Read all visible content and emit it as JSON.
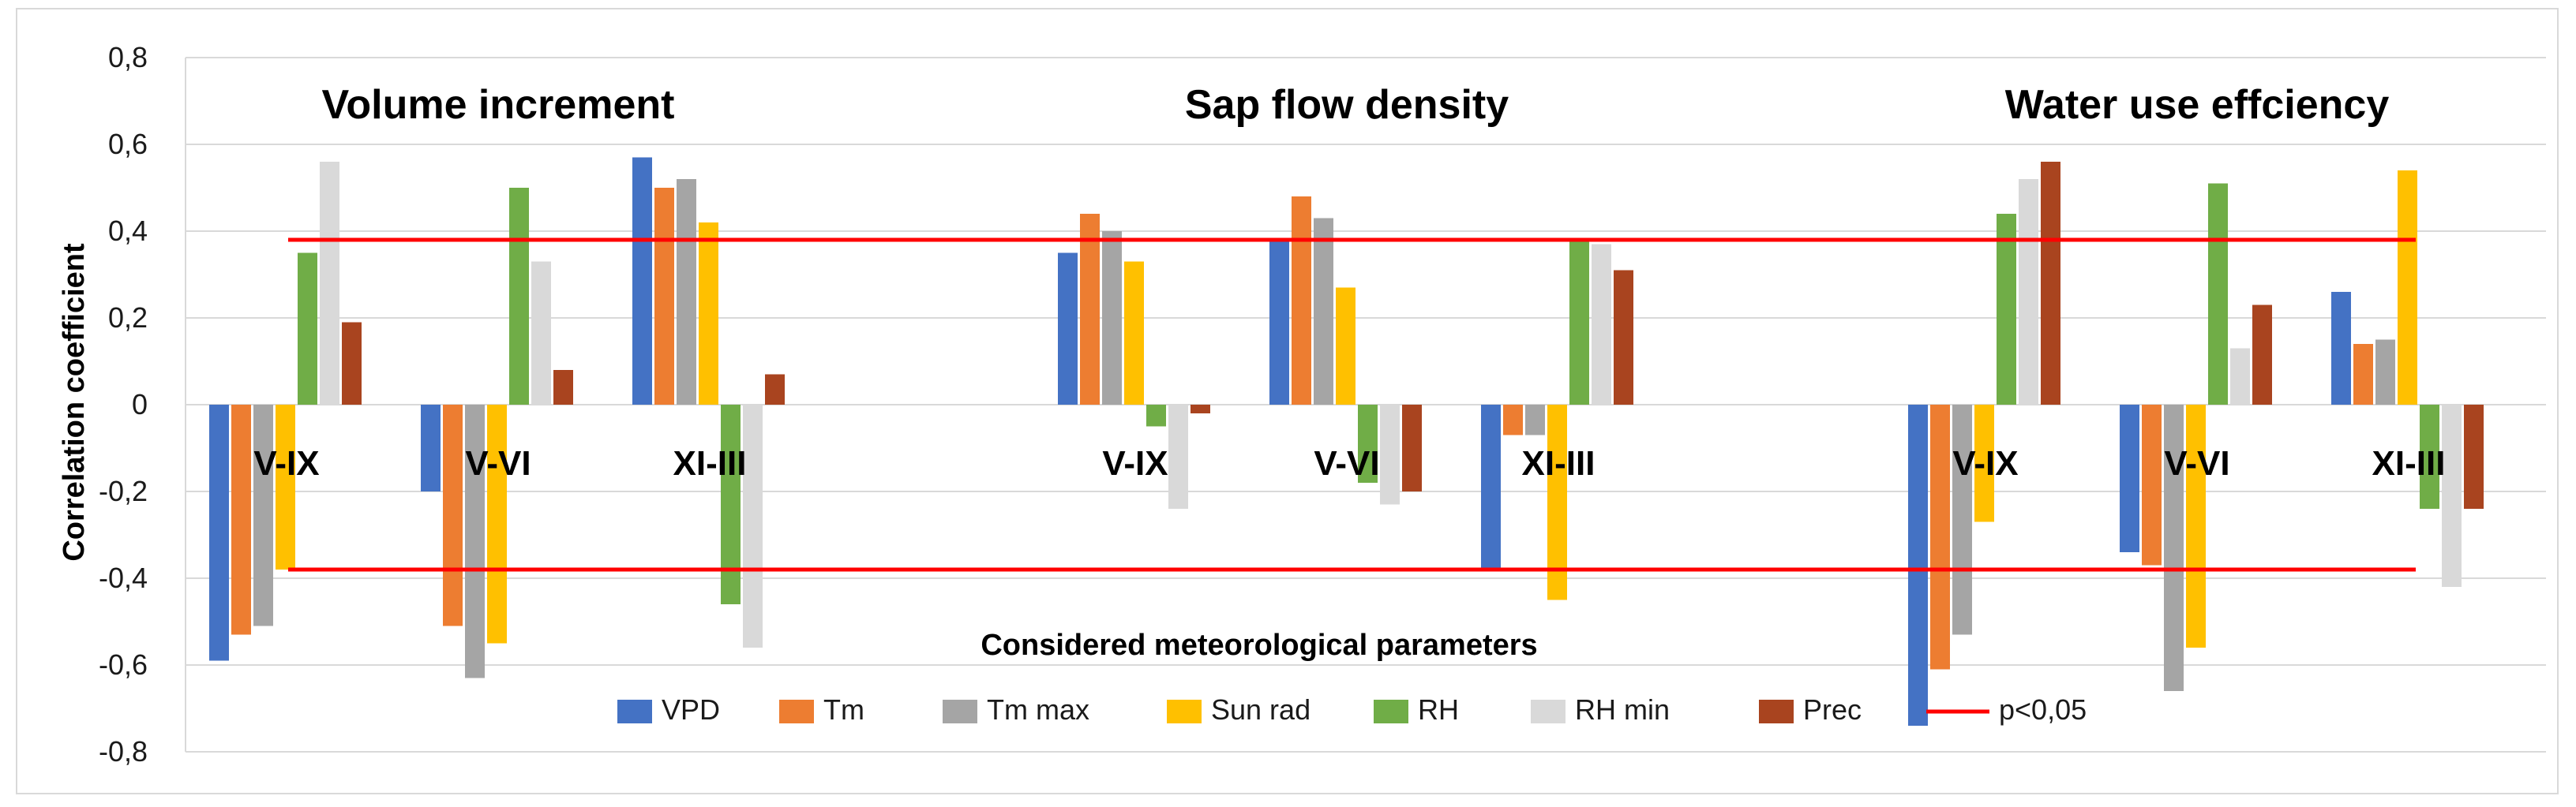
{
  "chart_data": {
    "type": "bar",
    "ylabel": "Correlation coefficient",
    "xlabel": "Considered meteorological parameters",
    "ylim": [
      -0.8,
      0.8
    ],
    "yticks": [
      "-0,8",
      "-0,6",
      "-0,4",
      "-0,2",
      "0",
      "0,2",
      "0,4",
      "0,6",
      "0,8"
    ],
    "grid": true,
    "significance": {
      "label": "p<0,05",
      "color": "#ff0000",
      "upper": 0.38,
      "lower": -0.38
    },
    "series": [
      {
        "name": "VPD",
        "color": "#4472c4"
      },
      {
        "name": "Tm",
        "color": "#ed7d31"
      },
      {
        "name": "Tm max",
        "color": "#a5a5a5"
      },
      {
        "name": "Sun rad",
        "color": "#ffc000"
      },
      {
        "name": "RH",
        "color": "#70ad47"
      },
      {
        "name": "RH min",
        "color": "#d9d9d9"
      },
      {
        "name": "Prec",
        "color": "#a9441f"
      }
    ],
    "groups": [
      {
        "title": "Volume increment",
        "periods": [
          {
            "label": "V-IX",
            "values": [
              -0.59,
              -0.53,
              -0.51,
              -0.38,
              0.35,
              0.56,
              0.19
            ]
          },
          {
            "label": "V-VI",
            "values": [
              -0.2,
              -0.51,
              -0.63,
              -0.55,
              0.5,
              0.33,
              0.08
            ]
          },
          {
            "label": "XI-III",
            "values": [
              0.57,
              0.5,
              0.52,
              0.42,
              -0.46,
              -0.56,
              0.07
            ]
          }
        ]
      },
      {
        "title": "Sap flow density",
        "periods": [
          {
            "label": "V-IX",
            "values": [
              0.35,
              0.44,
              0.4,
              0.33,
              -0.05,
              -0.24,
              -0.02
            ]
          },
          {
            "label": "V-VI",
            "values": [
              0.38,
              0.48,
              0.43,
              0.27,
              -0.18,
              -0.23,
              -0.2
            ]
          },
          {
            "label": "XI-III",
            "values": [
              -0.38,
              -0.07,
              -0.07,
              -0.45,
              0.38,
              0.37,
              0.31
            ]
          }
        ]
      },
      {
        "title": "Water use effciency",
        "periods": [
          {
            "label": "V-IX",
            "values": [
              -0.74,
              -0.61,
              -0.53,
              -0.27,
              0.44,
              0.52,
              0.56
            ]
          },
          {
            "label": "V-VI",
            "values": [
              -0.34,
              -0.37,
              -0.66,
              -0.56,
              0.51,
              0.13,
              0.23
            ]
          },
          {
            "label": "XI-III",
            "values": [
              0.26,
              0.14,
              0.15,
              0.54,
              -0.24,
              -0.42,
              -0.24
            ]
          }
        ]
      }
    ]
  }
}
